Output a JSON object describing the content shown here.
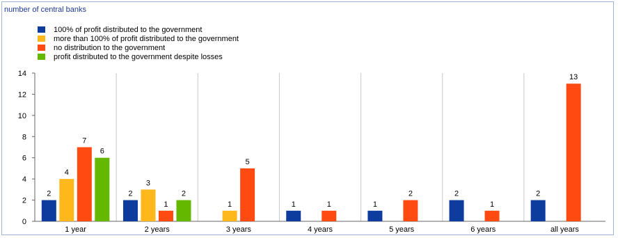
{
  "chart_data": {
    "type": "bar",
    "ylabel": "number of central banks",
    "ylim": [
      0,
      14
    ],
    "yticks": [
      0,
      2,
      4,
      6,
      8,
      10,
      12,
      14
    ],
    "grid": "vertical separators between categories",
    "legend_position": "top-left",
    "categories": [
      "1 year",
      "2 years",
      "3 years",
      "4 years",
      "5 years",
      "6 years",
      "all years"
    ],
    "series": [
      {
        "name": "100% of profit distributed to the government",
        "color": "#0d3b9e",
        "values": [
          2,
          2,
          null,
          1,
          1,
          2,
          2
        ]
      },
      {
        "name": "more than 100% of profit distributed to the government",
        "color": "#ffb81c",
        "values": [
          4,
          3,
          1,
          null,
          null,
          null,
          null
        ]
      },
      {
        "name": "no distribution to the government",
        "color": "#ff4b12",
        "values": [
          7,
          1,
          5,
          1,
          2,
          1,
          13
        ]
      },
      {
        "name": "profit distributed to the government despite losses",
        "color": "#65b800",
        "values": [
          6,
          2,
          null,
          null,
          null,
          null,
          null
        ]
      }
    ]
  }
}
